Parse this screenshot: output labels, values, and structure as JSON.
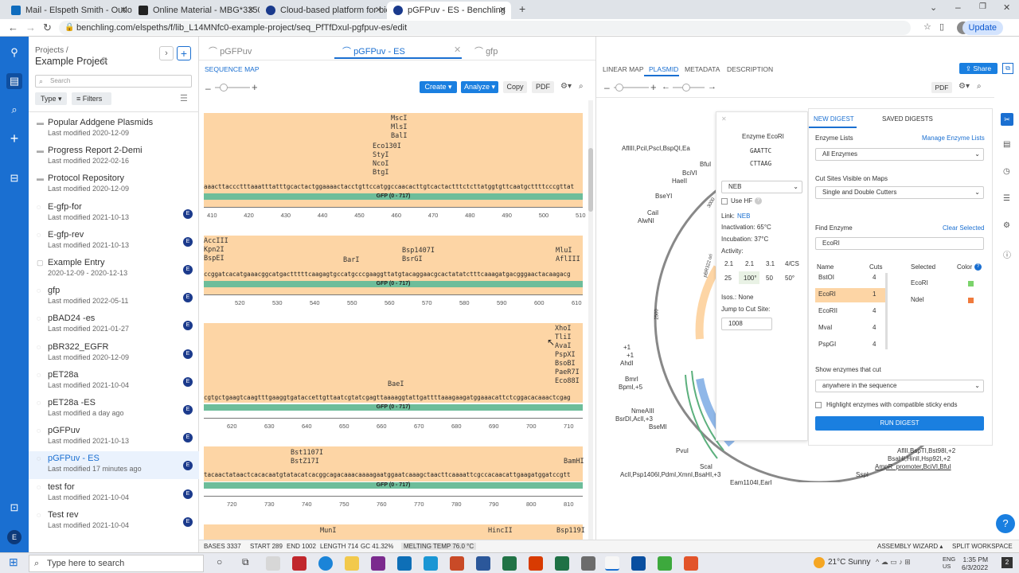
{
  "browser": {
    "tabs": [
      {
        "label": "Mail - Elspeth Smith - Outlook",
        "color": "#0f6cbd"
      },
      {
        "label": "Online Material - MBG*3350 (01(",
        "color": "#222222"
      },
      {
        "label": "Cloud-based platform for biotec",
        "color": "#1a3a8c"
      },
      {
        "label": "pGFPuv - ES - Benchling",
        "color": "#1a3a8c"
      }
    ],
    "url": "benchling.com/elspeths/f/lib_L14MNfc0-example-project/seq_PfTfDxul-pgfpuv-es/edit",
    "update_label": "Update"
  },
  "projects": {
    "breadcrumb": "Projects /",
    "title": "Example Project",
    "search_placeholder": "Search",
    "type_label": "Type",
    "filters_label": "Filters",
    "items": [
      {
        "name": "Popular Addgene Plasmids",
        "date": "Last modified 2020-12-09",
        "kind": "folder"
      },
      {
        "name": "Progress Report 2-Demi",
        "date": "Last modified 2022-02-16",
        "kind": "folder"
      },
      {
        "name": "Protocol Repository",
        "date": "Last modified 2020-12-09",
        "kind": "folder"
      },
      {
        "name": "E-gfp-for",
        "date": "Last modified 2021-10-13",
        "kind": "seq",
        "badge": "E"
      },
      {
        "name": "E-gfp-rev",
        "date": "Last modified 2021-10-13",
        "kind": "seq",
        "badge": "E"
      },
      {
        "name": "Example Entry",
        "date": "2020-12-09 - 2020-12-13",
        "kind": "entry",
        "badge": "E"
      },
      {
        "name": "gfp",
        "date": "Last modified 2022-05-11",
        "kind": "seq",
        "badge": "E"
      },
      {
        "name": "pBAD24 -es",
        "date": "Last modified 2021-01-27",
        "kind": "seq",
        "badge": "E"
      },
      {
        "name": "pBR322_EGFR",
        "date": "Last modified 2020-12-09",
        "kind": "seq",
        "badge": "E"
      },
      {
        "name": "pET28a",
        "date": "Last modified 2021-10-04",
        "kind": "seq",
        "badge": "E"
      },
      {
        "name": "pET28a -ES",
        "date": "Last modified a day ago",
        "kind": "seq",
        "badge": "E"
      },
      {
        "name": "pGFPuv",
        "date": "Last modified 2021-10-13",
        "kind": "seq",
        "badge": "E"
      },
      {
        "name": "pGFPuv - ES",
        "date": "Last modified 17 minutes ago",
        "kind": "seq",
        "badge": "E",
        "active": true
      },
      {
        "name": "test for",
        "date": "Last modified 2021-10-04",
        "kind": "seq",
        "badge": "E"
      },
      {
        "name": "Test rev",
        "date": "Last modified 2021-10-04",
        "kind": "seq",
        "badge": "E"
      }
    ]
  },
  "editor_tabs": [
    "pGFPuv",
    "pGFPuv - ES",
    "gfp"
  ],
  "seqmap": {
    "title": "SEQUENCE MAP",
    "create": "Create",
    "analyze": "Analyze",
    "copy": "Copy",
    "pdf": "PDF",
    "lanes": [
      {
        "enzymes_top": "MscI\nMlsI\nBalI",
        "enzymes_mid": "Eco130I\nStyI\nNcoI\nBtgI",
        "bases": "aaacttaccctttaaatttatttgcactactggaaaactacctgttccatggccaacacttgtcactactttctcttatggtgttcaatgcttttcccgttat",
        "feature": "GFP (0 - 717)",
        "ticks": [
          "410",
          "420",
          "430",
          "440",
          "450",
          "460",
          "470",
          "480",
          "490",
          "500",
          "510"
        ]
      },
      {
        "enzymes_left": "AccIII\nKpn2I\nBspEI",
        "enzymes_a": "BarI",
        "enzymes_b": "Bsp1407I\nBsrGI",
        "enzymes_right": "MluI\nAflIII",
        "bases": "ccggatcacatgaaacggcatgactttttcaagagtgccatgcccgaaggttatgtacaggaacgcactatatctttcaaagatgacgggaactacaagacg",
        "feature": "GFP (0 - 717)",
        "ticks": [
          "520",
          "530",
          "540",
          "550",
          "560",
          "570",
          "580",
          "590",
          "600",
          "610"
        ]
      },
      {
        "enzymes_a": "BaeI",
        "enzymes_right": "XhoI\nTliI\nAvaI\nPspXI\nBsoBI\nPaeR7I\nEco88I",
        "bases": "cgtgctgaagtcaagtttgaaggtgataccettgttaatcgtatcgagttaaaaggtattgattttaaagaagatggaaacattctcggacacaaactcgag",
        "feature": "GFP (0 - 717)",
        "ticks": [
          "620",
          "630",
          "640",
          "650",
          "660",
          "670",
          "680",
          "690",
          "700",
          "710"
        ]
      },
      {
        "enzymes_a": "Bst1107I\nBstZ17I",
        "enzymes_right": "BamHI",
        "bases": "tacaactataactcacacaatgtatacatcacggcagacaaacaaaagaatggaatcaaagctaacttcaaaattcgccacaacattgaagatggatccgtt",
        "feature": "GFP (0 - 717)",
        "ticks": [
          "720",
          "730",
          "740",
          "750",
          "760",
          "770",
          "780",
          "790",
          "800",
          "810"
        ]
      }
    ],
    "bottom_enzymes": {
      "a": "MunI",
      "b": "HincII",
      "c": "Bsp119I"
    }
  },
  "mapview": {
    "tabs": [
      "LINEAR MAP",
      "PLASMID",
      "METADATA",
      "DESCRIPTION"
    ],
    "share": "Share",
    "pdf": "PDF",
    "labels": {
      "l1": "AflIII,PciI,PscI,BspQI,Ea",
      "l2": "BfuI",
      "l3": "BciVI",
      "l4": "HaeII",
      "l5": "BseYI",
      "l6": "CaiI",
      "l7": "AlwNI",
      "l8": "+1",
      "l9": "+1",
      "l10": "AhdI",
      "l11": "BmrI",
      "l12": "BpmI,+5",
      "l13": "NmeAIII",
      "l14": "BsrDI,AclI,+3",
      "l15": "BseMI",
      "l16": "PvuI",
      "l17": "ScaI",
      "l18": "AclI,Psp1406I,PdmI,XmnI,BsaHI,+3",
      "l19": "Eam1104I,EarI",
      "l20": "SspI",
      "l21": "AflII,BspTI,Bst98I,+2",
      "l22": "BsaHI,HinlI,Hsp92I,+2",
      "l23": "AmpR_promoter,BciVI,BfuI",
      "n2500": "2500",
      "n1500": "1500",
      "n3000": "3000",
      "ori": "pBR322 ori",
      "pos": "1500"
    }
  },
  "enzyme_popup": {
    "title": "Enzyme EcoRI",
    "seq_top": "GAATTC",
    "seq_bottom": "CTTAAG",
    "supplier": "NEB",
    "use_hf": "Use HF",
    "link_label": "Link:",
    "link": "NEB",
    "inactivation": "Inactivation: 65°C",
    "incubation": "Incubation: 37°C",
    "activity_label": "Activity:",
    "activity_headers": [
      "2.1",
      "2.1",
      "3.1",
      "4/CS"
    ],
    "activity_values": [
      "25",
      "100°",
      "50",
      "50°"
    ],
    "isos": "Isos.: None",
    "jump": "Jump to Cut Site:",
    "jump_value": "1008"
  },
  "digest": {
    "tab_new": "NEW DIGEST",
    "tab_saved": "SAVED DIGESTS",
    "enzyme_lists_label": "Enzyme Lists",
    "manage": "Manage Enzyme Lists",
    "enzyme_list_value": "All Enzymes",
    "cut_sites_label": "Cut Sites Visible on Maps",
    "cut_sites_value": "Single and Double Cutters",
    "find_label": "Find Enzyme",
    "clear": "Clear Selected",
    "find_value": "EcoRI",
    "col_name": "Name",
    "col_cuts": "Cuts",
    "col_selected": "Selected",
    "col_color": "Color",
    "rows": [
      {
        "name": "BstOI",
        "cuts": "4"
      },
      {
        "name": "EcoRI",
        "cuts": "1"
      },
      {
        "name": "EcoRII",
        "cuts": "4"
      },
      {
        "name": "MvaI",
        "cuts": "4"
      },
      {
        "name": "PspGI",
        "cuts": "4"
      }
    ],
    "selected": [
      {
        "name": "EcoRI",
        "color": "#7bd36b"
      },
      {
        "name": "NdeI",
        "color": "#f07a3c"
      }
    ],
    "show_label": "Show enzymes that cut",
    "show_value": "anywhere in the sequence",
    "highlight": "Highlight enzymes with compatible sticky ends",
    "run": "RUN DIGEST"
  },
  "status": {
    "bases": "BASES 3337",
    "start": "START 289",
    "end": "END 1002",
    "length": "LENGTH 714",
    "gc": "GC 41.32%",
    "melt": "MELTING TEMP 76.0 °C",
    "wizard": "ASSEMBLY WIZARD",
    "split": "SPLIT WORKSPACE"
  },
  "taskbar": {
    "search_placeholder": "Type here to search",
    "weather": "21°C  Sunny",
    "lang1": "ENG",
    "lang2": "US",
    "time": "1:35 PM",
    "date": "6/3/2022"
  }
}
